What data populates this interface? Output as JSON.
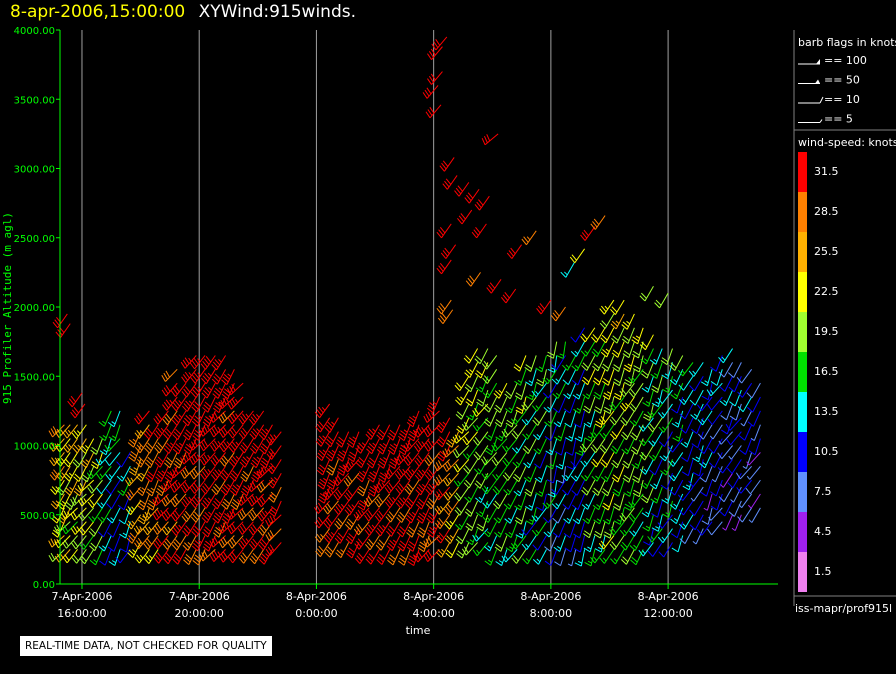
{
  "header": {
    "date": "8-apr-2006,15:00:00",
    "title": "XYWind:915winds."
  },
  "quality_note": "REAL-TIME DATA, NOT CHECKED FOR QUALITY",
  "source_label": "iss-mapr/prof915l",
  "colors": {
    "background": "#000000",
    "axis": "#00ff00",
    "grid": "#a0a0a0",
    "text": "#ffffff",
    "header_date": "#ffff00"
  },
  "chart_data": {
    "type": "wind-barb time-height",
    "title": "XYWind:915winds.",
    "ylabel": "915 Profiler Altitude (m agl)",
    "xlabel": "time",
    "ylim": [
      0,
      4000
    ],
    "y_ticks": [
      "0.00",
      "500.00",
      "1000.00",
      "1500.00",
      "2000.00",
      "2500.00",
      "3000.00",
      "3500.00",
      "4000.00"
    ],
    "xlim_hours": [
      15.25,
      39.75
    ],
    "x_ticks": [
      {
        "line1": "7-Apr-2006",
        "line2": "16:00:00",
        "hour": 16
      },
      {
        "line1": "7-Apr-2006",
        "line2": "20:00:00",
        "hour": 20
      },
      {
        "line1": "8-Apr-2006",
        "line2": "0:00:00",
        "hour": 24
      },
      {
        "line1": "8-Apr-2006",
        "line2": "4:00:00",
        "hour": 28
      },
      {
        "line1": "8-Apr-2006",
        "line2": "8:00:00",
        "hour": 32
      },
      {
        "line1": "8-Apr-2006",
        "line2": "12:00:00",
        "hour": 36
      }
    ],
    "grid": "vertical",
    "barb_legend": {
      "title": "barb flags in knots",
      "items": [
        {
          "label": "== 100",
          "kind": "pennant"
        },
        {
          "label": "== 50",
          "kind": "triangle"
        },
        {
          "label": "== 10",
          "kind": "full"
        },
        {
          "label": "== 5",
          "kind": "half"
        }
      ]
    },
    "speed_legend": {
      "title": "wind-speed: knots",
      "bins": [
        {
          "label": "31.5",
          "color": "#ff0000"
        },
        {
          "label": "28.5",
          "color": "#ff8000"
        },
        {
          "label": "25.5",
          "color": "#ffb000"
        },
        {
          "label": "22.5",
          "color": "#ffff00"
        },
        {
          "label": "19.5",
          "color": "#a0ff30"
        },
        {
          "label": "16.5",
          "color": "#00e000"
        },
        {
          "label": "13.5",
          "color": "#00ffff"
        },
        {
          "label": "10.5",
          "color": "#0000ff"
        },
        {
          "label": "7.5",
          "color": "#6090ff"
        },
        {
          "label": "4.5",
          "color": "#a020f0"
        },
        {
          "label": "1.5",
          "color": "#f080f0"
        }
      ]
    },
    "profile_columns": [
      {
        "hour": 15.4,
        "zmin": 250,
        "zmax": 1200,
        "spd": 25,
        "dir": 215
      },
      {
        "hour": 15.6,
        "zmin": 250,
        "zmax": 1200,
        "spd": 23,
        "dir": 215
      },
      {
        "hour": 15.85,
        "zmin": 250,
        "zmax": 1150,
        "spd": 22,
        "dir": 215
      },
      {
        "hour": 16.15,
        "zmin": 250,
        "zmax": 1150,
        "spd": 22,
        "dir": 215
      },
      {
        "hour": 16.4,
        "zmin": 250,
        "zmax": 1100,
        "spd": 21,
        "dir": 215
      },
      {
        "hour": 16.7,
        "zmin": 250,
        "zmax": 1100,
        "spd": 20,
        "dir": 210
      },
      {
        "hour": 17.0,
        "zmin": 250,
        "zmax": 1300,
        "spd": 14,
        "dir": 210
      },
      {
        "hour": 17.3,
        "zmin": 250,
        "zmax": 1300,
        "spd": 13,
        "dir": 210
      },
      {
        "hour": 17.65,
        "zmin": 250,
        "zmax": 1000,
        "spd": 12,
        "dir": 205
      },
      {
        "hour": 18.0,
        "zmin": 300,
        "zmax": 1100,
        "spd": 26,
        "dir": 210
      },
      {
        "hour": 18.3,
        "zmin": 250,
        "zmax": 1250,
        "spd": 27,
        "dir": 210
      },
      {
        "hour": 18.6,
        "zmin": 250,
        "zmax": 1150,
        "spd": 28,
        "dir": 210
      },
      {
        "hour": 18.95,
        "zmin": 250,
        "zmax": 1250,
        "spd": 31,
        "dir": 215
      },
      {
        "hour": 19.25,
        "zmin": 250,
        "zmax": 1600,
        "spd": 31,
        "dir": 215
      },
      {
        "hour": 19.55,
        "zmin": 250,
        "zmax": 1450,
        "spd": 32,
        "dir": 215
      },
      {
        "hour": 19.9,
        "zmin": 250,
        "zmax": 1650,
        "spd": 32,
        "dir": 215
      },
      {
        "hour": 20.2,
        "zmin": 250,
        "zmax": 1650,
        "spd": 33,
        "dir": 215
      },
      {
        "hour": 20.55,
        "zmin": 250,
        "zmax": 1650,
        "spd": 33,
        "dir": 215
      },
      {
        "hour": 20.9,
        "zmin": 250,
        "zmax": 1700,
        "spd": 33,
        "dir": 215
      },
      {
        "hour": 21.2,
        "zmin": 250,
        "zmax": 1600,
        "spd": 32,
        "dir": 215
      },
      {
        "hour": 21.5,
        "zmin": 250,
        "zmax": 1450,
        "spd": 32,
        "dir": 215
      },
      {
        "hour": 21.85,
        "zmin": 250,
        "zmax": 1300,
        "spd": 32,
        "dir": 215
      },
      {
        "hour": 22.2,
        "zmin": 250,
        "zmax": 1250,
        "spd": 32,
        "dir": 215
      },
      {
        "hour": 22.5,
        "zmin": 250,
        "zmax": 1200,
        "spd": 32,
        "dir": 215
      },
      {
        "hour": 22.8,
        "zmin": 300,
        "zmax": 1150,
        "spd": 32,
        "dir": 215
      },
      {
        "hour": 24.45,
        "zmin": 300,
        "zmax": 1300,
        "spd": 32,
        "dir": 210
      },
      {
        "hour": 24.75,
        "zmin": 300,
        "zmax": 1250,
        "spd": 32,
        "dir": 210
      },
      {
        "hour": 25.1,
        "zmin": 300,
        "zmax": 1150,
        "spd": 32,
        "dir": 210
      },
      {
        "hour": 25.45,
        "zmin": 300,
        "zmax": 1100,
        "spd": 32,
        "dir": 210
      },
      {
        "hour": 25.8,
        "zmin": 250,
        "zmax": 1100,
        "spd": 32,
        "dir": 210
      },
      {
        "hour": 26.15,
        "zmin": 250,
        "zmax": 1150,
        "spd": 32,
        "dir": 210
      },
      {
        "hour": 26.5,
        "zmin": 250,
        "zmax": 1150,
        "spd": 32,
        "dir": 210
      },
      {
        "hour": 26.85,
        "zmin": 250,
        "zmax": 1200,
        "spd": 32,
        "dir": 210
      },
      {
        "hour": 27.2,
        "zmin": 250,
        "zmax": 1150,
        "spd": 32,
        "dir": 210
      },
      {
        "hour": 27.5,
        "zmin": 250,
        "zmax": 1250,
        "spd": 32,
        "dir": 210
      },
      {
        "hour": 27.85,
        "zmin": 250,
        "zmax": 1150,
        "spd": 32,
        "dir": 210
      },
      {
        "hour": 28.2,
        "zmin": 250,
        "zmax": 1350,
        "spd": 32,
        "dir": 215
      },
      {
        "hour": 28.55,
        "zmin": 300,
        "zmax": 1250,
        "spd": 30,
        "dir": 215
      },
      {
        "hour": 28.85,
        "zmin": 300,
        "zmax": 1150,
        "spd": 26,
        "dir": 215
      },
      {
        "hour": 29.2,
        "zmin": 300,
        "zmax": 1550,
        "spd": 20,
        "dir": 215
      },
      {
        "hour": 29.5,
        "zmin": 300,
        "zmax": 1700,
        "spd": 19,
        "dir": 210
      },
      {
        "hour": 29.85,
        "zmin": 300,
        "zmax": 1750,
        "spd": 18,
        "dir": 210
      },
      {
        "hour": 30.15,
        "zmin": 250,
        "zmax": 1650,
        "spd": 17,
        "dir": 210
      },
      {
        "hour": 30.5,
        "zmin": 250,
        "zmax": 1500,
        "spd": 18,
        "dir": 210
      },
      {
        "hour": 30.85,
        "zmin": 250,
        "zmax": 1500,
        "spd": 17,
        "dir": 210
      },
      {
        "hour": 31.15,
        "zmin": 250,
        "zmax": 1650,
        "spd": 17,
        "dir": 205
      },
      {
        "hour": 31.5,
        "zmin": 250,
        "zmax": 1700,
        "spd": 16,
        "dir": 205
      },
      {
        "hour": 31.85,
        "zmin": 250,
        "zmax": 1700,
        "spd": 15,
        "dir": 205
      },
      {
        "hour": 32.2,
        "zmin": 250,
        "zmax": 1750,
        "spd": 13,
        "dir": 200
      },
      {
        "hour": 32.5,
        "zmin": 250,
        "zmax": 1800,
        "spd": 12,
        "dir": 200
      },
      {
        "hour": 32.85,
        "zmin": 250,
        "zmax": 1700,
        "spd": 12,
        "dir": 200
      },
      {
        "hour": 33.15,
        "zmin": 250,
        "zmax": 1900,
        "spd": 13,
        "dir": 200
      },
      {
        "hour": 33.5,
        "zmin": 250,
        "zmax": 1900,
        "spd": 17,
        "dir": 205
      },
      {
        "hour": 33.85,
        "zmin": 250,
        "zmax": 1850,
        "spd": 19,
        "dir": 205
      },
      {
        "hour": 34.15,
        "zmin": 250,
        "zmax": 2050,
        "spd": 20,
        "dir": 205
      },
      {
        "hour": 34.5,
        "zmin": 250,
        "zmax": 2100,
        "spd": 20,
        "dir": 205
      },
      {
        "hour": 34.85,
        "zmin": 250,
        "zmax": 2000,
        "spd": 19,
        "dir": 205
      },
      {
        "hour": 35.15,
        "zmin": 250,
        "zmax": 1900,
        "spd": 18,
        "dir": 205
      },
      {
        "hour": 35.5,
        "zmin": 300,
        "zmax": 1800,
        "spd": 16,
        "dir": 205
      },
      {
        "hour": 35.8,
        "zmin": 300,
        "zmax": 1750,
        "spd": 15,
        "dir": 205
      },
      {
        "hour": 36.15,
        "zmin": 300,
        "zmax": 1700,
        "spd": 14,
        "dir": 205
      },
      {
        "hour": 36.5,
        "zmin": 350,
        "zmax": 1650,
        "spd": 13,
        "dir": 205
      },
      {
        "hour": 36.85,
        "zmin": 400,
        "zmax": 1650,
        "spd": 12,
        "dir": 205
      },
      {
        "hour": 37.2,
        "zmin": 400,
        "zmax": 1600,
        "spd": 11,
        "dir": 205
      },
      {
        "hour": 37.5,
        "zmin": 450,
        "zmax": 1600,
        "spd": 10,
        "dir": 205
      },
      {
        "hour": 37.85,
        "zmin": 450,
        "zmax": 1650,
        "spd": 10,
        "dir": 210
      },
      {
        "hour": 38.2,
        "zmin": 500,
        "zmax": 1700,
        "spd": 9,
        "dir": 210
      },
      {
        "hour": 38.5,
        "zmin": 500,
        "zmax": 1600,
        "spd": 9,
        "dir": 210
      },
      {
        "hour": 38.85,
        "zmin": 550,
        "zmax": 1550,
        "spd": 9,
        "dir": 210
      },
      {
        "hour": 39.15,
        "zmin": 550,
        "zmax": 1500,
        "spd": 8,
        "dir": 210
      }
    ],
    "isolated_barbs": [
      {
        "hour": 15.5,
        "z": 1950,
        "spd": 31,
        "dir": 215
      },
      {
        "hour": 15.6,
        "z": 1880,
        "spd": 31,
        "dir": 215
      },
      {
        "hour": 16.0,
        "z": 1380,
        "spd": 31,
        "dir": 215
      },
      {
        "hour": 16.1,
        "z": 1300,
        "spd": 31,
        "dir": 215
      },
      {
        "hour": 28.45,
        "z": 3950,
        "spd": 32,
        "dir": 220
      },
      {
        "hour": 28.3,
        "z": 3880,
        "spd": 32,
        "dir": 220
      },
      {
        "hour": 28.3,
        "z": 3700,
        "spd": 32,
        "dir": 220
      },
      {
        "hour": 28.15,
        "z": 3600,
        "spd": 32,
        "dir": 220
      },
      {
        "hour": 28.25,
        "z": 3460,
        "spd": 32,
        "dir": 220
      },
      {
        "hour": 30.2,
        "z": 3250,
        "spd": 32,
        "dir": 230
      },
      {
        "hour": 28.7,
        "z": 3080,
        "spd": 32,
        "dir": 215
      },
      {
        "hour": 28.8,
        "z": 2950,
        "spd": 32,
        "dir": 215
      },
      {
        "hour": 29.2,
        "z": 2900,
        "spd": 32,
        "dir": 215
      },
      {
        "hour": 29.55,
        "z": 2850,
        "spd": 32,
        "dir": 215
      },
      {
        "hour": 29.9,
        "z": 2800,
        "spd": 32,
        "dir": 215
      },
      {
        "hour": 29.3,
        "z": 2700,
        "spd": 32,
        "dir": 215
      },
      {
        "hour": 28.6,
        "z": 2600,
        "spd": 32,
        "dir": 215
      },
      {
        "hour": 29.8,
        "z": 2600,
        "spd": 32,
        "dir": 215
      },
      {
        "hour": 28.75,
        "z": 2450,
        "spd": 32,
        "dir": 215
      },
      {
        "hour": 31.5,
        "z": 2550,
        "spd": 27,
        "dir": 215
      },
      {
        "hour": 31.0,
        "z": 2450,
        "spd": 31,
        "dir": 215
      },
      {
        "hour": 28.6,
        "z": 2340,
        "spd": 32,
        "dir": 215
      },
      {
        "hour": 29.6,
        "z": 2250,
        "spd": 29,
        "dir": 215
      },
      {
        "hour": 30.3,
        "z": 2200,
        "spd": 31,
        "dir": 215
      },
      {
        "hour": 30.8,
        "z": 2130,
        "spd": 31,
        "dir": 215
      },
      {
        "hour": 32.8,
        "z": 2320,
        "spd": 14,
        "dir": 210
      },
      {
        "hour": 33.15,
        "z": 2420,
        "spd": 22,
        "dir": 215
      },
      {
        "hour": 33.5,
        "z": 2580,
        "spd": 31,
        "dir": 215
      },
      {
        "hour": 33.85,
        "z": 2660,
        "spd": 29,
        "dir": 215
      },
      {
        "hour": 32.0,
        "z": 2050,
        "spd": 31,
        "dir": 215
      },
      {
        "hour": 32.5,
        "z": 2000,
        "spd": 28,
        "dir": 215
      },
      {
        "hour": 35.5,
        "z": 2150,
        "spd": 20,
        "dir": 210
      },
      {
        "hour": 36.0,
        "z": 2100,
        "spd": 19,
        "dir": 210
      },
      {
        "hour": 28.6,
        "z": 2050,
        "spd": 28,
        "dir": 215
      },
      {
        "hour": 28.65,
        "z": 1980,
        "spd": 28,
        "dir": 215
      }
    ]
  }
}
